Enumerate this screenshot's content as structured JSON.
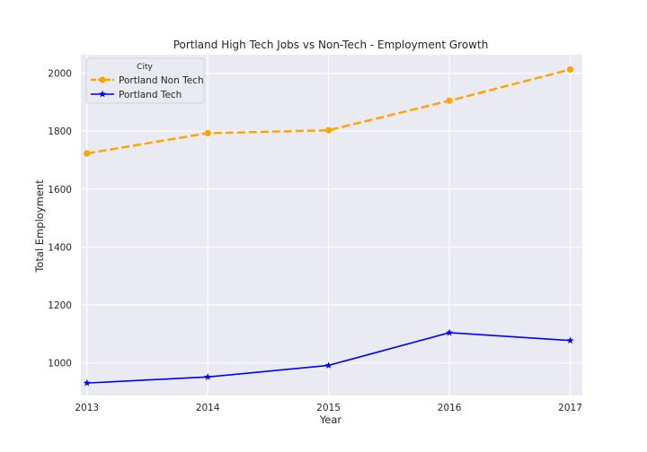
{
  "chart_data": {
    "type": "line",
    "title": "Portland High Tech Jobs vs Non-Tech - Employment Growth",
    "xlabel": "Year",
    "ylabel": "Total Employment",
    "x": [
      2013,
      2014,
      2015,
      2016,
      2017
    ],
    "x_tick_labels": [
      "2013",
      "2014",
      "2015",
      "2016",
      "2017"
    ],
    "y_ticks": [
      1000,
      1200,
      1400,
      1600,
      1800,
      2000
    ],
    "y_tick_labels": [
      "1000",
      "1200",
      "1400",
      "1600",
      "1800",
      "2000"
    ],
    "xlim": [
      2012.95,
      2017.1
    ],
    "ylim": [
      887,
      2064
    ],
    "grid": true,
    "background": "#eaeaf2",
    "legend": {
      "title": "City",
      "position": "top-left"
    },
    "series": [
      {
        "name": "Portland Non Tech",
        "values": [
          1723,
          1793,
          1803,
          1905,
          2013
        ],
        "color": "#ffa500",
        "line_style": "dashed",
        "marker": "circle"
      },
      {
        "name": "Portland Tech",
        "values": [
          930,
          951,
          991,
          1104,
          1077
        ],
        "color": "#0000ff",
        "line_style": "solid",
        "marker": "star"
      }
    ]
  }
}
